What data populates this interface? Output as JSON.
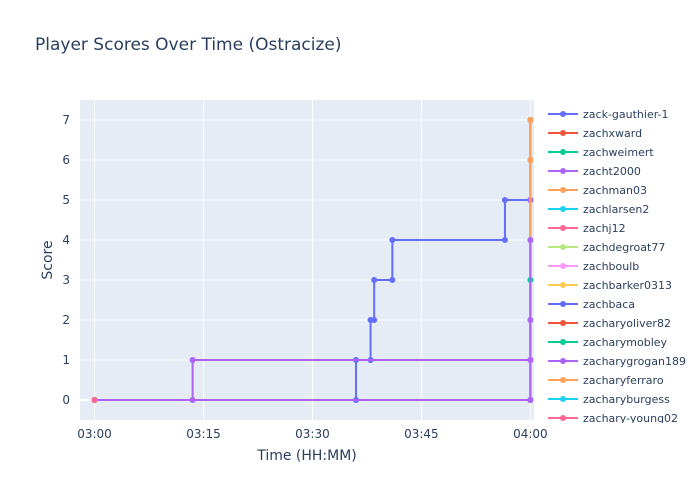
{
  "chart_data": {
    "type": "line",
    "title": "Player Scores Over Time (Ostracize)",
    "xlabel": "Time (HH:MM)",
    "ylabel": "Score",
    "x_ticks": [
      "03:00",
      "03:15",
      "03:30",
      "03:45",
      "04:00"
    ],
    "x_tick_minutes": [
      0,
      15,
      30,
      45,
      60
    ],
    "xlim_minutes": [
      -2,
      60.5
    ],
    "ylim": [
      -0.5,
      7.5
    ],
    "y_ticks": [
      0,
      1,
      2,
      3,
      4,
      5,
      6,
      7
    ],
    "line_shape": "step",
    "grid": true,
    "legend_position": "right",
    "series": [
      {
        "name": "zack-gauthier-1",
        "color": "#636efa",
        "points": [
          [
            0,
            0
          ],
          [
            36,
            0
          ],
          [
            36,
            1
          ],
          [
            38,
            1
          ],
          [
            38,
            2
          ],
          [
            38.5,
            2
          ],
          [
            38.5,
            3
          ],
          [
            41,
            3
          ],
          [
            41,
            4
          ],
          [
            56.5,
            4
          ],
          [
            56.5,
            5
          ],
          [
            60,
            5
          ],
          [
            60,
            6
          ],
          [
            60,
            7
          ]
        ]
      },
      {
        "name": "zachxward",
        "color": "#ef553b",
        "points": [
          [
            0,
            0
          ],
          [
            60,
            0
          ],
          [
            60,
            1
          ],
          [
            60,
            7
          ]
        ]
      },
      {
        "name": "zachweimert",
        "color": "#00cc96",
        "points": [
          [
            0,
            0
          ],
          [
            60,
            0
          ],
          [
            60,
            3
          ]
        ]
      },
      {
        "name": "zacht2000",
        "color": "#ab63fa",
        "points": [
          [
            0,
            0
          ],
          [
            13.5,
            0
          ],
          [
            13.5,
            1
          ],
          [
            60,
            1
          ],
          [
            60,
            2
          ],
          [
            60,
            5
          ]
        ]
      },
      {
        "name": "zachman03",
        "color": "#ffa15a",
        "points": [
          [
            0,
            0
          ],
          [
            60,
            0
          ],
          [
            60,
            6
          ],
          [
            60,
            7
          ]
        ]
      },
      {
        "name": "zachlarsen2",
        "color": "#19d3f3",
        "points": [
          [
            0,
            0
          ]
        ]
      },
      {
        "name": "zachj12",
        "color": "#ff6692",
        "points": [
          [
            0,
            0
          ]
        ]
      },
      {
        "name": "zachdegroat77",
        "color": "#b6e880",
        "points": [
          [
            0,
            0
          ]
        ]
      },
      {
        "name": "zachboulb",
        "color": "#ff97ff",
        "points": [
          [
            0,
            0
          ]
        ]
      },
      {
        "name": "zachbarker0313",
        "color": "#fecb52",
        "points": [
          [
            0,
            0
          ]
        ]
      },
      {
        "name": "zachbaca",
        "color": "#636efa",
        "points": [
          [
            0,
            0
          ]
        ]
      },
      {
        "name": "zacharyoliver82",
        "color": "#ef553b",
        "points": [
          [
            0,
            0
          ]
        ]
      },
      {
        "name": "zacharymobley",
        "color": "#00cc96",
        "points": [
          [
            0,
            0
          ]
        ]
      },
      {
        "name": "zacharygrogan189",
        "color": "#ab63fa",
        "points": [
          [
            0,
            0
          ],
          [
            60,
            0
          ],
          [
            60,
            4
          ]
        ]
      },
      {
        "name": "zacharyferraro",
        "color": "#ffa15a",
        "points": [
          [
            0,
            0
          ]
        ]
      },
      {
        "name": "zacharyburgess",
        "color": "#19d3f3",
        "points": [
          [
            0,
            0
          ]
        ]
      },
      {
        "name": "zachary-young02",
        "color": "#ff6692",
        "points": [
          [
            0,
            0
          ]
        ]
      }
    ]
  }
}
